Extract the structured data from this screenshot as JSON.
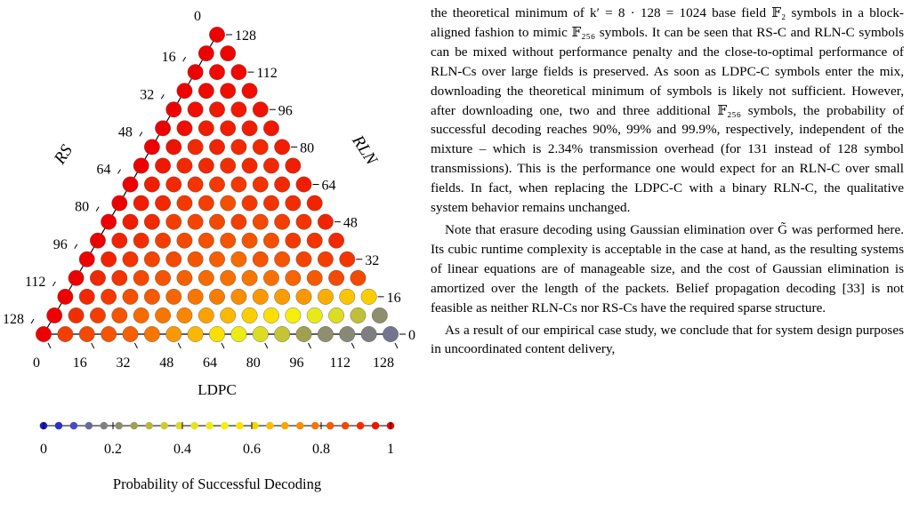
{
  "figure": {
    "top_label": "0",
    "left_axis": {
      "label": "RS",
      "ticks": [
        "16",
        "32",
        "48",
        "64",
        "80",
        "96",
        "112",
        "128"
      ]
    },
    "right_axis": {
      "label": "RLN",
      "ticks": [
        "128",
        "112",
        "96",
        "80",
        "64",
        "48",
        "32",
        "16",
        "0"
      ]
    },
    "bottom_axis": {
      "label": "LDPC",
      "ticks": [
        "0",
        "16",
        "32",
        "48",
        "64",
        "80",
        "96",
        "112",
        "128"
      ]
    },
    "colorbar": {
      "ticks": [
        "0",
        "0.2",
        "0.4",
        "0.6",
        "0.8",
        "1"
      ],
      "label": "Probability of Successful Decoding",
      "stops": [
        "#1a1acc",
        "#2a30c8",
        "#4a4ac0",
        "#6a6a9a",
        "#808080",
        "#8e8e70",
        "#a0a050",
        "#b8b840",
        "#cccc30",
        "#dada24",
        "#e4e41c",
        "#ecec14",
        "#f4f00c",
        "#fae400",
        "#fcd400",
        "#fcbc00",
        "#fca400",
        "#fa8c00",
        "#f87400",
        "#f65c00",
        "#f44400",
        "#f22c00",
        "#f01400",
        "#ee0000"
      ]
    },
    "grid": {
      "n": 16,
      "rows": [
        [
          1
        ],
        [
          1,
          0.99
        ],
        [
          1,
          0.98,
          0.98
        ],
        [
          1,
          0.98,
          0.97,
          0.97
        ],
        [
          1,
          0.97,
          0.95,
          0.95,
          0.96
        ],
        [
          1,
          0.97,
          0.94,
          0.94,
          0.94,
          0.95
        ],
        [
          1,
          0.96,
          0.92,
          0.93,
          0.92,
          0.92,
          0.94
        ],
        [
          1,
          0.95,
          0.92,
          0.92,
          0.91,
          0.92,
          0.92,
          0.94
        ],
        [
          1,
          0.94,
          0.92,
          0.9,
          0.89,
          0.89,
          0.9,
          0.92,
          0.94
        ],
        [
          1,
          0.94,
          0.92,
          0.89,
          0.88,
          0.85,
          0.89,
          0.9,
          0.91,
          0.93
        ],
        [
          1,
          0.94,
          0.92,
          0.88,
          0.87,
          0.86,
          0.88,
          0.86,
          0.88,
          0.9,
          0.93
        ],
        [
          1,
          0.93,
          0.91,
          0.88,
          0.86,
          0.85,
          0.84,
          0.84,
          0.85,
          0.89,
          0.9,
          0.92
        ],
        [
          1,
          0.93,
          0.9,
          0.87,
          0.86,
          0.84,
          0.82,
          0.8,
          0.84,
          0.84,
          0.87,
          0.88,
          0.9
        ],
        [
          1,
          0.92,
          0.9,
          0.86,
          0.84,
          0.82,
          0.8,
          0.79,
          0.78,
          0.79,
          0.81,
          0.83,
          0.86,
          0.86
        ],
        [
          1,
          0.92,
          0.89,
          0.85,
          0.83,
          0.81,
          0.78,
          0.77,
          0.74,
          0.72,
          0.71,
          0.72,
          0.68,
          0.64,
          0.62
        ],
        [
          1,
          0.91,
          0.88,
          0.84,
          0.8,
          0.78,
          0.75,
          0.7,
          0.66,
          0.62,
          0.58,
          0.52,
          0.46,
          0.4,
          0.32,
          0.22
        ],
        [
          1,
          0.88,
          0.86,
          0.84,
          0.82,
          0.78,
          0.72,
          0.66,
          0.58,
          0.48,
          0.4,
          0.33,
          0.26,
          0.22,
          0.2,
          0.17,
          0.15
        ]
      ]
    }
  },
  "text": {
    "p1": "the theoretical minimum of k′ = 8 · 128 = 1024 base field 𝔽₂ symbols in a block-aligned fashion to mimic 𝔽₂₅₆ symbols. It can be seen that RS-C and RLN-C symbols can be mixed without performance penalty and the close-to-optimal performance of RLN-Cs over large fields is preserved. As soon as LDPC-C symbols enter the mix, downloading the theoretical minimum of symbols is likely not sufficient. However, after downloading one, two and three additional 𝔽₂₅₆ symbols, the probability of successful decoding reaches 90%, 99% and 99.9%, respectively, independent of the mixture – which is 2.34% transmission overhead (for 131 instead of 128 symbol transmissions). This is the performance one would expect for an RLN-C over small fields. In fact, when replacing the LDPC-C with a binary RLN-C, the qualitative system behavior remains unchanged.",
    "p2": "Note that erasure decoding using Gaussian elimination over G̃ was performed here. Its cubic runtime complexity is acceptable in the case at hand, as the resulting systems of linear equations are of manageable size, and the cost of Gaussian elimination is amortized over the length of the packets. Belief propagation decoding [33] is not feasible as neither RLN-Cs nor RS-Cs have the required sparse structure.",
    "p3": "As a result of our empirical case study, we conclude that for system design purposes in uncoordinated content delivery,"
  }
}
